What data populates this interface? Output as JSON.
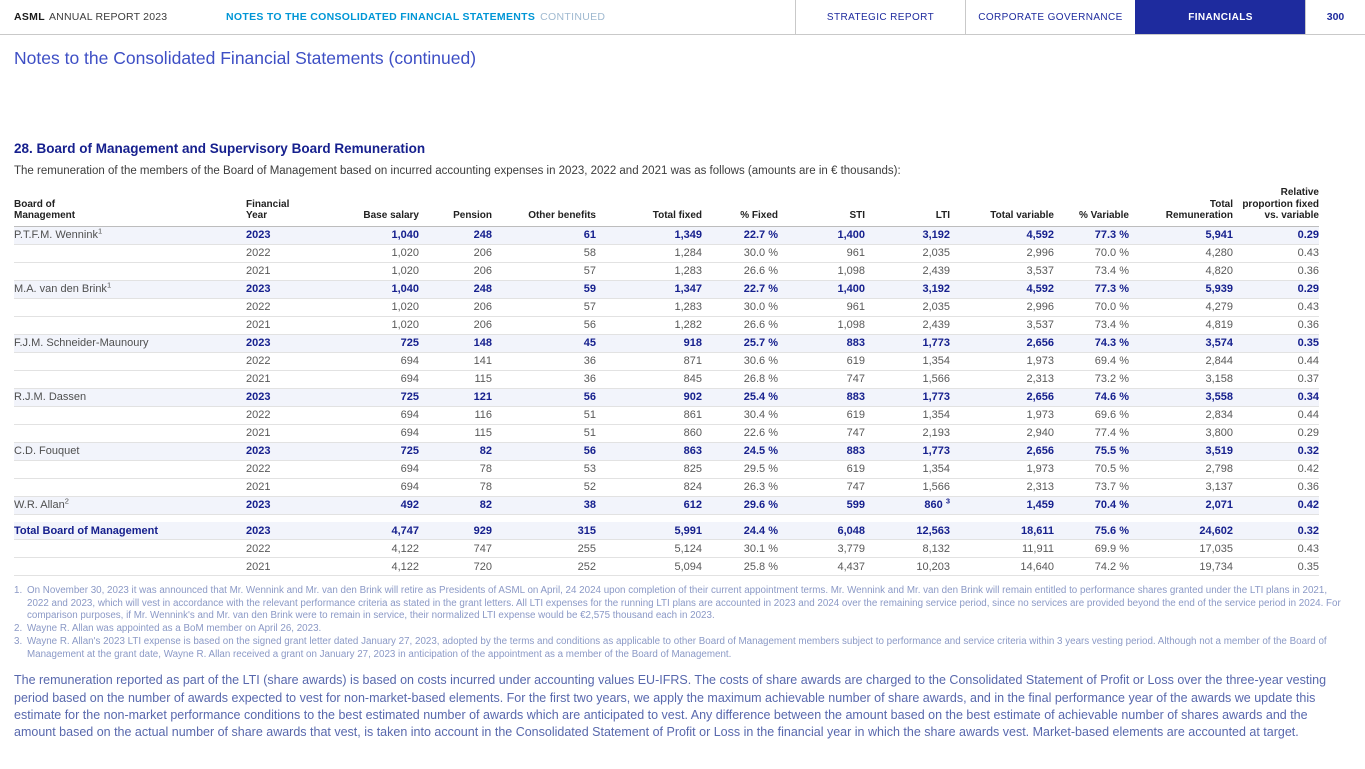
{
  "header": {
    "brand_bold": "ASML",
    "brand_rest": "ANNUAL REPORT 2023",
    "doc_title": "NOTES TO THE CONSOLIDATED FINANCIAL STATEMENTS",
    "doc_title_suffix": "CONTINUED",
    "tabs": [
      {
        "label": "STRATEGIC REPORT",
        "active": false
      },
      {
        "label": "CORPORATE GOVERNANCE",
        "active": false
      },
      {
        "label": "FINANCIALS",
        "active": true
      }
    ],
    "page_number": "300",
    "colors": {
      "brand_navy": "#1e2b9e",
      "doc_title_blue": "#0096d6",
      "title_blue": "#3e4fc5",
      "heading_navy": "#16208e"
    }
  },
  "page": {
    "title": "Notes to the Consolidated Financial Statements (continued)",
    "section_heading": "28. Board of Management and Supervisory Board Remuneration",
    "intro": "The remuneration of the members of the Board of Management based on incurred accounting expenses in 2023, 2022 and 2021 was as follows (amounts are in € thousands):",
    "closing_paragraph": "The remuneration reported as part of the LTI (share awards) is based on costs incurred under accounting values EU-IFRS. The costs of share awards are charged to the Consolidated Statement of Profit or Loss over the three-year vesting period based on the number of awards expected to vest for non-market-based elements. For the first two years, we apply the maximum achievable number of share awards, and in the final performance year of the awards we update this estimate for the non-market performance conditions to the best estimated number of awards which are anticipated to vest. Any difference between the amount based on the best estimate of achievable number of shares awards and the amount based on the actual number of share awards that vest, is taken into account in the Consolidated Statement of Profit or Loss in the financial year in which the share awards vest. Market-based elements are accounted at target."
  },
  "table": {
    "columns": [
      "Board of\nManagement",
      "Financial\nYear",
      "Base salary",
      "Pension",
      "Other benefits",
      "Total fixed",
      "% Fixed",
      "STI",
      "LTI",
      "Total variable",
      "% Variable",
      "Total\nRemuneration",
      "Relative\nproportion fixed\nvs. variable"
    ],
    "groups": [
      {
        "name": "P.T.F.M. Wennink",
        "name_sup": "1",
        "total": false,
        "rows": [
          {
            "year": "2023",
            "bold": true,
            "values": [
              "1,040",
              "248",
              "61",
              "1,349",
              "22.7 %",
              "1,400",
              "3,192",
              "4,592",
              "77.3 %",
              "5,941",
              "0.29"
            ]
          },
          {
            "year": "2022",
            "bold": false,
            "values": [
              "1,020",
              "206",
              "58",
              "1,284",
              "30.0 %",
              "961",
              "2,035",
              "2,996",
              "70.0 %",
              "4,280",
              "0.43"
            ]
          },
          {
            "year": "2021",
            "bold": false,
            "values": [
              "1,020",
              "206",
              "57",
              "1,283",
              "26.6 %",
              "1,098",
              "2,439",
              "3,537",
              "73.4 %",
              "4,820",
              "0.36"
            ]
          }
        ]
      },
      {
        "name": "M.A. van den Brink",
        "name_sup": "1",
        "total": false,
        "rows": [
          {
            "year": "2023",
            "bold": true,
            "values": [
              "1,040",
              "248",
              "59",
              "1,347",
              "22.7 %",
              "1,400",
              "3,192",
              "4,592",
              "77.3 %",
              "5,939",
              "0.29"
            ]
          },
          {
            "year": "2022",
            "bold": false,
            "values": [
              "1,020",
              "206",
              "57",
              "1,283",
              "30.0 %",
              "961",
              "2,035",
              "2,996",
              "70.0 %",
              "4,279",
              "0.43"
            ]
          },
          {
            "year": "2021",
            "bold": false,
            "values": [
              "1,020",
              "206",
              "56",
              "1,282",
              "26.6 %",
              "1,098",
              "2,439",
              "3,537",
              "73.4 %",
              "4,819",
              "0.36"
            ]
          }
        ]
      },
      {
        "name": "F.J.M. Schneider-Maunoury",
        "name_sup": "",
        "total": false,
        "rows": [
          {
            "year": "2023",
            "bold": true,
            "values": [
              "725",
              "148",
              "45",
              "918",
              "25.7 %",
              "883",
              "1,773",
              "2,656",
              "74.3 %",
              "3,574",
              "0.35"
            ]
          },
          {
            "year": "2022",
            "bold": false,
            "values": [
              "694",
              "141",
              "36",
              "871",
              "30.6 %",
              "619",
              "1,354",
              "1,973",
              "69.4 %",
              "2,844",
              "0.44"
            ]
          },
          {
            "year": "2021",
            "bold": false,
            "values": [
              "694",
              "115",
              "36",
              "845",
              "26.8 %",
              "747",
              "1,566",
              "2,313",
              "73.2 %",
              "3,158",
              "0.37"
            ]
          }
        ]
      },
      {
        "name": "R.J.M. Dassen",
        "name_sup": "",
        "total": false,
        "rows": [
          {
            "year": "2023",
            "bold": true,
            "values": [
              "725",
              "121",
              "56",
              "902",
              "25.4 %",
              "883",
              "1,773",
              "2,656",
              "74.6 %",
              "3,558",
              "0.34"
            ]
          },
          {
            "year": "2022",
            "bold": false,
            "values": [
              "694",
              "116",
              "51",
              "861",
              "30.4 %",
              "619",
              "1,354",
              "1,973",
              "69.6 %",
              "2,834",
              "0.44"
            ]
          },
          {
            "year": "2021",
            "bold": false,
            "values": [
              "694",
              "115",
              "51",
              "860",
              "22.6 %",
              "747",
              "2,193",
              "2,940",
              "77.4 %",
              "3,800",
              "0.29"
            ]
          }
        ]
      },
      {
        "name": "C.D. Fouquet",
        "name_sup": "",
        "total": false,
        "rows": [
          {
            "year": "2023",
            "bold": true,
            "values": [
              "725",
              "82",
              "56",
              "863",
              "24.5 %",
              "883",
              "1,773",
              "2,656",
              "75.5 %",
              "3,519",
              "0.32"
            ]
          },
          {
            "year": "2022",
            "bold": false,
            "values": [
              "694",
              "78",
              "53",
              "825",
              "29.5 %",
              "619",
              "1,354",
              "1,973",
              "70.5 %",
              "2,798",
              "0.42"
            ]
          },
          {
            "year": "2021",
            "bold": false,
            "values": [
              "694",
              "78",
              "52",
              "824",
              "26.3 %",
              "747",
              "1,566",
              "2,313",
              "73.7 %",
              "3,137",
              "0.36"
            ]
          }
        ]
      },
      {
        "name": "W.R. Allan",
        "name_sup": "2",
        "total": false,
        "rows": [
          {
            "year": "2023",
            "bold": true,
            "values": [
              "492",
              "82",
              "38",
              "612",
              "29.6 %",
              "599",
              "860",
              "1,459",
              "70.4 %",
              "2,071",
              "0.42"
            ],
            "value_sups": {
              "6": "3"
            }
          }
        ]
      },
      {
        "name": "Total Board of Management",
        "name_sup": "",
        "total": true,
        "rows": [
          {
            "year": "2023",
            "bold": true,
            "values": [
              "4,747",
              "929",
              "315",
              "5,991",
              "24.4 %",
              "6,048",
              "12,563",
              "18,611",
              "75.6 %",
              "24,602",
              "0.32"
            ]
          },
          {
            "year": "2022",
            "bold": false,
            "values": [
              "4,122",
              "747",
              "255",
              "5,124",
              "30.1 %",
              "3,779",
              "8,132",
              "11,911",
              "69.9 %",
              "17,035",
              "0.43"
            ]
          },
          {
            "year": "2021",
            "bold": false,
            "values": [
              "4,122",
              "720",
              "252",
              "5,094",
              "25.8 %",
              "4,437",
              "10,203",
              "14,640",
              "74.2 %",
              "19,734",
              "0.35"
            ]
          }
        ]
      }
    ]
  },
  "footnotes": [
    {
      "num": "1.",
      "text": "On November 30, 2023 it was announced that Mr. Wennink and Mr. van den Brink will retire as Presidents of ASML on April, 24 2024 upon completion of their current appointment terms. Mr. Wennink and Mr. van den Brink will remain entitled to performance shares granted under the LTI plans in 2021, 2022 and 2023, which will vest in accordance with the relevant performance criteria as stated in the grant letters. All LTI expenses for the running LTI plans are accounted in 2023 and 2024 over the remaining service period, since no services are provided beyond the end of the service period in 2024. For comparison purposes, if Mr. Wennink's and Mr. van den Brink were to remain in service, their normalized LTI expense would be €2,575 thousand each in 2023."
    },
    {
      "num": "2.",
      "text": "Wayne R. Allan was appointed as a BoM member on April 26, 2023."
    },
    {
      "num": "3.",
      "text": "Wayne R. Allan's 2023 LTI expense is based on the signed grant letter dated January 27, 2023, adopted by the terms and conditions as applicable to other Board of Management members subject to performance and service criteria within 3 years vesting period. Although not a member of the Board of Management at the grant date, Wayne R. Allan received a grant on January 27, 2023 in anticipation of the appointment as a member of the Board of Management."
    }
  ]
}
